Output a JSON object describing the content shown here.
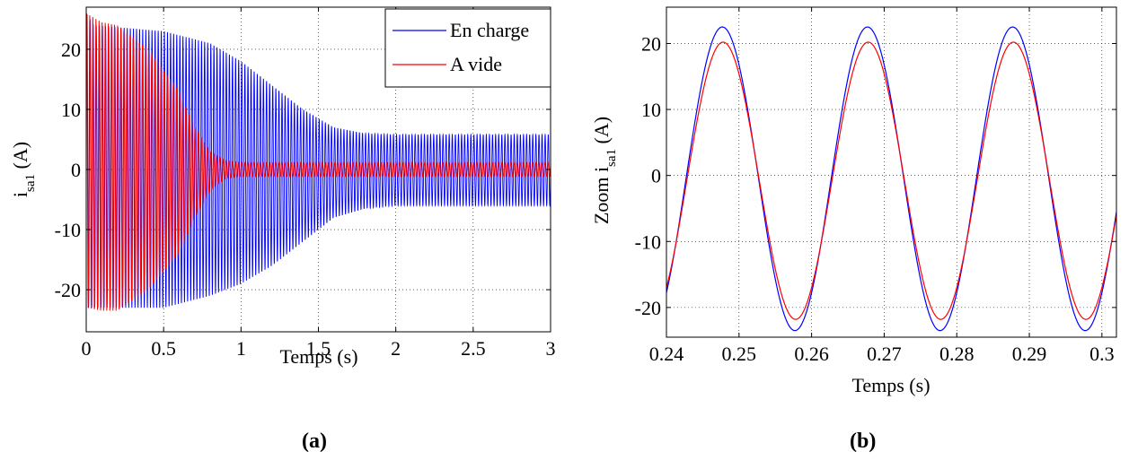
{
  "panels": {
    "a_label": "(a)",
    "b_label": "(b)"
  },
  "chart_data": [
    {
      "type": "line",
      "xlabel": "Temps (s)",
      "ylabel_main": "i",
      "ylabel_sub": "sa1",
      "ylabel_unit": "(A)",
      "xlim": [
        0,
        3
      ],
      "ylim": [
        -27,
        27
      ],
      "xticks": [
        0,
        0.5,
        1,
        1.5,
        2,
        2.5,
        3
      ],
      "xtick_labels": [
        "0",
        "0.5",
        "1",
        "1.5",
        "2",
        "2.5",
        "3"
      ],
      "yticks": [
        -20,
        -10,
        0,
        10,
        20
      ],
      "ytick_labels": [
        "-20",
        "-10",
        "0",
        "10",
        "20"
      ],
      "grid": true,
      "legend": "top-right",
      "frequency_hz": 50,
      "series": [
        {
          "name": "En charge",
          "color": "#0000ff",
          "envelope_upper": {
            "t": [
              0,
              0.05,
              0.5,
              0.8,
              1.0,
              1.2,
              1.4,
              1.6,
              1.8,
              2.0,
              3.0
            ],
            "a": [
              26,
              24,
              23,
              21,
              18,
              14,
              10,
              7,
              6,
              5.8,
              5.8
            ]
          },
          "envelope_lower": {
            "t": [
              0,
              0.05,
              0.5,
              0.8,
              1.0,
              1.2,
              1.4,
              1.6,
              1.8,
              2.0,
              3.0
            ],
            "a": [
              -23,
              -23,
              -23,
              -21,
              -19,
              -16,
              -12,
              -8,
              -6.5,
              -6,
              -6
            ]
          }
        },
        {
          "name": "A vide",
          "color": "#ff0000",
          "envelope_upper": {
            "t": [
              0,
              0.1,
              0.2,
              0.4,
              0.6,
              0.7,
              0.8,
              0.9,
              1.0,
              3.0
            ],
            "a": [
              26,
              24.5,
              24,
              20,
              13,
              7,
              3,
              1.5,
              1.2,
              1.2
            ]
          },
          "envelope_lower": {
            "t": [
              0,
              0.1,
              0.2,
              0.4,
              0.6,
              0.7,
              0.8,
              0.9,
              1.0,
              3.0
            ],
            "a": [
              -23,
              -23.5,
              -23.5,
              -20,
              -14,
              -8,
              -3.5,
              -1.5,
              -1.2,
              -1.2
            ]
          }
        }
      ]
    },
    {
      "type": "line",
      "xlabel": "Temps (s)",
      "ylabel_main": "Zoom i",
      "ylabel_sub": "sa1",
      "ylabel_unit": "(A)",
      "xlim": [
        0.24,
        0.302
      ],
      "ylim": [
        -24.5,
        25.5
      ],
      "xticks": [
        0.24,
        0.25,
        0.26,
        0.27,
        0.28,
        0.29,
        0.3
      ],
      "xtick_labels": [
        "0.24",
        "0.25",
        "0.26",
        "0.27",
        "0.28",
        "0.29",
        "0.3"
      ],
      "yticks": [
        -20,
        -10,
        0,
        10,
        20
      ],
      "ytick_labels": [
        "-20",
        "-10",
        "0",
        "10",
        "20"
      ],
      "grid": true,
      "frequency_hz": 50,
      "series": [
        {
          "name": "En charge",
          "color": "#0000ff",
          "amplitude": 23,
          "peak_time": 0.2477
        },
        {
          "name": "A vide",
          "color": "#ff0000",
          "amplitude": 21,
          "peak_time": 0.2478
        }
      ]
    }
  ]
}
